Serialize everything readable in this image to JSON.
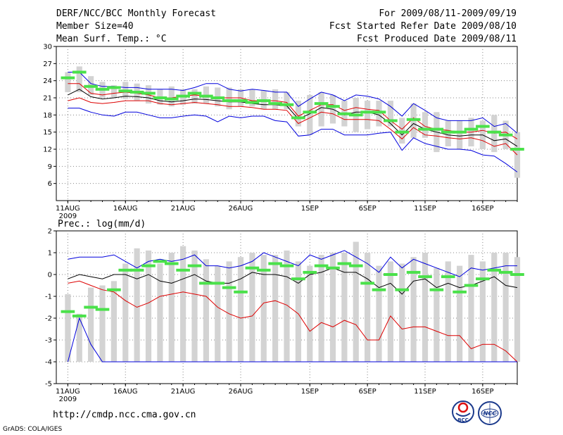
{
  "header": {
    "title": "DERF/NCC/BCC Monthly Forecast",
    "member_size": "Member Size=40",
    "variable": "Mean Surf. Temp.: °C",
    "period": "For 2009/08/11-2009/09/19",
    "started": "Fcst Started Refer Date 2009/08/10",
    "produced": "Fcst Produced Date 2009/08/11"
  },
  "footer": {
    "url": "http://cmdp.ncc.cma.gov.cn",
    "grads": "GrADS: COLA/IGES",
    "logo_bcc": "BCC",
    "logo_ncc": "NCC"
  },
  "colors": {
    "box": "#d3d3d3",
    "green": "#4ae14a",
    "ens_mean": "#000000",
    "inner_band": "#dd0000",
    "outer_band": "#0000dd",
    "grid": "#888888"
  },
  "chart_data": [
    {
      "type": "box-line",
      "title": "Mean Surf. Temp.: °C",
      "ylim": [
        3,
        30
      ],
      "yticks": [
        30,
        27,
        24,
        21,
        18,
        15,
        12,
        9,
        6
      ],
      "xlim": [
        0,
        40
      ],
      "xticks": [
        {
          "day": 1,
          "label": "11AUG"
        },
        {
          "day": 6,
          "label": "16AUG"
        },
        {
          "day": 11,
          "label": "21AUG"
        },
        {
          "day": 16,
          "label": "26AUG"
        },
        {
          "day": 22,
          "label": "1SEP"
        },
        {
          "day": 27,
          "label": "6SEP"
        },
        {
          "day": 32,
          "label": "11SEP"
        },
        {
          "day": 37,
          "label": "16SEP"
        }
      ],
      "year_label": "2009",
      "days": [
        1,
        2,
        3,
        4,
        5,
        6,
        7,
        8,
        9,
        10,
        11,
        12,
        13,
        14,
        15,
        16,
        17,
        18,
        19,
        20,
        21,
        22,
        23,
        24,
        25,
        26,
        27,
        28,
        29,
        30,
        31,
        32,
        33,
        34,
        35,
        36,
        37,
        38,
        39,
        40
      ],
      "box_low": [
        22.0,
        22.0,
        21.5,
        21.0,
        21.0,
        20.8,
        20.5,
        20.0,
        19.8,
        19.5,
        19.8,
        20.0,
        20.0,
        19.5,
        19.0,
        19.5,
        19.5,
        19.0,
        19.0,
        19.0,
        16.0,
        14.5,
        16.0,
        16.5,
        16.0,
        15.0,
        15.5,
        16.0,
        16.0,
        13.0,
        14.0,
        14.0,
        11.5,
        12.5,
        12.0,
        12.5,
        12.0,
        11.5,
        12.0,
        7.0
      ],
      "box_high": [
        25.5,
        26.5,
        24.8,
        23.8,
        23.2,
        23.8,
        23.5,
        23.2,
        22.5,
        23.0,
        22.5,
        22.5,
        23.0,
        22.8,
        22.8,
        22.5,
        22.5,
        22.3,
        22.5,
        22.0,
        20.5,
        21.5,
        22.0,
        21.5,
        20.5,
        21.0,
        20.5,
        20.5,
        20.5,
        17.5,
        20.0,
        18.5,
        18.5,
        17.0,
        17.0,
        17.5,
        17.0,
        18.0,
        17.0,
        15.0
      ],
      "green": [
        24.5,
        25.5,
        23.0,
        22.5,
        22.8,
        22.2,
        22.0,
        21.8,
        21.0,
        20.8,
        21.3,
        21.8,
        21.3,
        21.0,
        20.5,
        20.5,
        20.2,
        20.5,
        20.0,
        19.8,
        17.5,
        18.5,
        20.0,
        19.5,
        18.2,
        18.0,
        18.5,
        18.5,
        17.0,
        15.0,
        17.2,
        15.5,
        15.5,
        15.0,
        15.0,
        15.5,
        16.0,
        15.0,
        14.5,
        12.0
      ],
      "series": [
        {
          "name": "ensemble-mean",
          "values": [
            21.5,
            22.5,
            21.2,
            20.8,
            21.0,
            21.3,
            21.2,
            21.0,
            20.5,
            20.3,
            20.5,
            20.8,
            20.7,
            20.5,
            20.3,
            20.3,
            20.0,
            19.8,
            19.8,
            19.6,
            17.3,
            18.2,
            19.3,
            19.0,
            18.0,
            18.5,
            18.5,
            18.0,
            16.5,
            14.5,
            16.5,
            15.5,
            15.0,
            14.5,
            14.3,
            14.5,
            14.5,
            13.5,
            13.8,
            12.5
          ]
        },
        {
          "name": "inner-upper",
          "values": [
            23.5,
            23.5,
            21.8,
            21.5,
            21.8,
            22.0,
            21.8,
            21.5,
            21.0,
            21.0,
            21.3,
            21.5,
            21.3,
            21.0,
            21.0,
            21.0,
            20.5,
            20.5,
            20.5,
            20.2,
            17.8,
            18.8,
            19.8,
            19.8,
            18.8,
            19.3,
            19.0,
            18.8,
            17.0,
            15.5,
            17.5,
            16.0,
            15.5,
            15.3,
            15.0,
            15.0,
            15.3,
            14.8,
            15.0,
            13.8
          ]
        },
        {
          "name": "inner-lower",
          "values": [
            20.5,
            21.0,
            20.2,
            20.0,
            20.2,
            20.5,
            20.5,
            20.5,
            20.0,
            19.8,
            20.0,
            20.2,
            20.0,
            19.8,
            19.5,
            19.5,
            19.3,
            19.0,
            19.0,
            18.8,
            16.5,
            17.5,
            18.5,
            18.2,
            17.2,
            17.2,
            17.2,
            17.0,
            15.5,
            13.8,
            15.8,
            14.5,
            14.3,
            14.0,
            13.8,
            14.0,
            13.5,
            12.5,
            13.0,
            11.0
          ]
        },
        {
          "name": "outer-upper",
          "values": [
            25.5,
            25.5,
            23.5,
            23.0,
            23.0,
            22.8,
            22.8,
            22.5,
            22.5,
            22.5,
            22.3,
            22.8,
            23.5,
            23.5,
            22.5,
            22.2,
            22.5,
            22.3,
            22.0,
            22.0,
            19.5,
            20.8,
            22.0,
            21.5,
            20.5,
            21.5,
            21.3,
            20.8,
            19.5,
            17.8,
            20.0,
            18.8,
            17.5,
            17.0,
            17.0,
            17.0,
            17.5,
            16.0,
            16.5,
            14.8
          ]
        },
        {
          "name": "outer-lower",
          "values": [
            19.2,
            19.2,
            18.5,
            18.0,
            17.8,
            18.5,
            18.5,
            18.0,
            17.5,
            17.5,
            17.8,
            18.0,
            17.8,
            16.8,
            17.8,
            17.5,
            17.8,
            17.8,
            17.0,
            16.8,
            14.3,
            14.5,
            15.5,
            15.5,
            14.5,
            14.5,
            14.5,
            14.8,
            15.0,
            11.8,
            14.0,
            13.0,
            12.5,
            12.0,
            12.0,
            11.8,
            11.0,
            10.8,
            9.5,
            8.0
          ]
        }
      ]
    },
    {
      "type": "box-line",
      "title": "Prec.: log(mm/d)",
      "ylim": [
        -5,
        2
      ],
      "yticks": [
        2,
        1,
        0,
        -1,
        -2,
        -3,
        -4,
        -5
      ],
      "xlim": [
        0,
        40
      ],
      "xticks": [
        {
          "day": 1,
          "label": "11AUG"
        },
        {
          "day": 6,
          "label": "16AUG"
        },
        {
          "day": 11,
          "label": "21AUG"
        },
        {
          "day": 16,
          "label": "26AUG"
        },
        {
          "day": 22,
          "label": "1SEP"
        },
        {
          "day": 27,
          "label": "6SEP"
        },
        {
          "day": 32,
          "label": "11SEP"
        },
        {
          "day": 37,
          "label": "16SEP"
        }
      ],
      "year_label": "2009",
      "days": [
        1,
        2,
        3,
        4,
        5,
        6,
        7,
        8,
        9,
        10,
        11,
        12,
        13,
        14,
        15,
        16,
        17,
        18,
        19,
        20,
        21,
        22,
        23,
        24,
        25,
        26,
        27,
        28,
        29,
        30,
        31,
        32,
        33,
        34,
        35,
        36,
        37,
        38,
        39,
        40
      ],
      "box_low": [
        -4.0,
        -4.0,
        -4.0,
        -4.0,
        -4.0,
        -4.0,
        -4.0,
        -4.0,
        -4.0,
        -4.0,
        -4.0,
        -4.0,
        -4.0,
        -4.0,
        -4.0,
        -4.0,
        -4.0,
        -4.0,
        -4.0,
        -4.0,
        -4.0,
        -4.0,
        -4.0,
        -4.0,
        -4.0,
        -4.0,
        -4.0,
        -4.0,
        -4.0,
        -4.0,
        -4.0,
        -4.0,
        -4.0,
        -4.0,
        -4.0,
        -4.0,
        -4.0,
        -4.0,
        -4.0,
        -4.0
      ],
      "box_high": [
        -0.9,
        -1.8,
        -0.6,
        -0.5,
        -0.3,
        0.5,
        1.2,
        1.1,
        0.5,
        1.0,
        1.3,
        1.1,
        0.7,
        0.4,
        0.6,
        0.8,
        1.0,
        0.9,
        0.9,
        1.1,
        0.6,
        0.4,
        0.9,
        1.0,
        1.0,
        1.5,
        1.0,
        0.4,
        0.6,
        0.5,
        0.8,
        1.0,
        0.3,
        0.6,
        0.4,
        0.9,
        0.6,
        1.0,
        1.0,
        0.8
      ],
      "green": [
        -1.7,
        -1.9,
        -1.5,
        -1.6,
        -0.7,
        0.2,
        0.2,
        0.4,
        0.6,
        0.5,
        0.2,
        0.4,
        -0.4,
        -0.4,
        -0.6,
        -0.8,
        0.3,
        0.2,
        0.5,
        0.4,
        -0.2,
        0.1,
        0.4,
        0.3,
        0.5,
        0.4,
        -0.4,
        -0.7,
        0.0,
        -0.7,
        0.1,
        -0.1,
        -0.7,
        -0.1,
        -0.8,
        -0.5,
        -0.2,
        0.2,
        0.1,
        0.0
      ],
      "series": [
        {
          "name": "ensemble-mean",
          "values": [
            -0.2,
            0.0,
            -0.1,
            -0.2,
            0.0,
            0.0,
            -0.2,
            0.0,
            -0.3,
            -0.4,
            -0.2,
            0.0,
            -0.3,
            -0.4,
            -0.4,
            -0.2,
            0.1,
            0.0,
            0.0,
            -0.1,
            -0.4,
            0.0,
            0.1,
            0.3,
            0.1,
            0.1,
            -0.2,
            -0.6,
            -0.4,
            -0.9,
            -0.3,
            -0.2,
            -0.6,
            -0.4,
            -0.6,
            -0.5,
            -0.3,
            -0.1,
            -0.5,
            -0.6
          ]
        },
        {
          "name": "inner-upper",
          "values": [
            -0.4,
            -0.3,
            -0.5,
            -0.7,
            -0.8,
            -1.2,
            -1.5,
            -1.3,
            -1.0,
            -0.9,
            -0.8,
            -0.9,
            -1.0,
            -1.5,
            -1.8,
            -2.0,
            -1.9,
            -1.3,
            -1.2,
            -1.4,
            -1.8,
            -2.6,
            -2.2,
            -2.4,
            -2.1,
            -2.3,
            -3.0,
            -3.0,
            -1.9,
            -2.5,
            -2.4,
            -2.4,
            -2.6,
            -2.8,
            -2.8,
            -3.4,
            -3.2,
            -3.2,
            -3.5,
            -4.0
          ]
        },
        {
          "name": "outer-upper",
          "values": [
            0.7,
            0.8,
            0.8,
            0.8,
            0.9,
            0.6,
            0.3,
            0.6,
            0.7,
            0.6,
            0.7,
            0.9,
            0.4,
            0.4,
            0.3,
            0.4,
            0.6,
            1.0,
            0.8,
            0.6,
            0.4,
            0.9,
            0.7,
            0.9,
            1.1,
            0.8,
            0.5,
            0.1,
            0.8,
            0.3,
            0.7,
            0.5,
            0.3,
            0.1,
            -0.1,
            0.3,
            0.2,
            0.3,
            0.4,
            0.4
          ]
        },
        {
          "name": "outer-lower",
          "values": [
            -4.0,
            -2.0,
            -3.2,
            -4.0,
            -4.0,
            -4.0,
            -4.0,
            -4.0,
            -4.0,
            -4.0,
            -4.0,
            -4.0,
            -4.0,
            -4.0,
            -4.0,
            -4.0,
            -4.0,
            -4.0,
            -4.0,
            -4.0,
            -4.0,
            -4.0,
            -4.0,
            -4.0,
            -4.0,
            -4.0,
            -4.0,
            -4.0,
            -4.0,
            -4.0,
            -4.0,
            -4.0,
            -4.0,
            -4.0,
            -4.0,
            -4.0,
            -4.0,
            -4.0,
            -4.0,
            -4.0
          ]
        }
      ]
    }
  ]
}
